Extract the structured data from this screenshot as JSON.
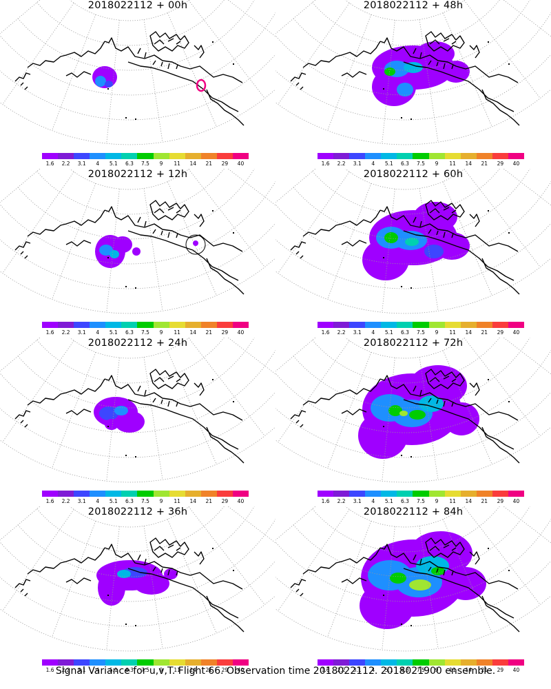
{
  "caption": "Signal Variance for u,v,T. Flight 66. Observation time 2018022112. 2018021900 ensemble.",
  "colorbar": {
    "colors": [
      "#9f00ff",
      "#7f1bd6",
      "#3d46ff",
      "#1e8fff",
      "#00b8e5",
      "#00d0b0",
      "#00cc00",
      "#a0e632",
      "#e6dc32",
      "#e6af2d",
      "#f08228",
      "#fa3c3c",
      "#f00082"
    ],
    "tick_labels": [
      "1.6",
      "2.2",
      "3.1",
      "4",
      "5.1",
      "6.3",
      "7.5",
      "9",
      "11",
      "14",
      "21",
      "29",
      "40"
    ]
  },
  "panels": [
    {
      "title": "2018022112 + 00h",
      "stage": 0
    },
    {
      "title": "2018022112 + 48h",
      "stage": 4
    },
    {
      "title": "2018022112 + 12h",
      "stage": 1
    },
    {
      "title": "2018022112 + 60h",
      "stage": 5
    },
    {
      "title": "2018022112 + 24h",
      "stage": 2
    },
    {
      "title": "2018022112 + 72h",
      "stage": 6
    },
    {
      "title": "2018022112 + 36h",
      "stage": 3
    },
    {
      "title": "2018022112 + 84h",
      "stage": 7
    }
  ]
}
